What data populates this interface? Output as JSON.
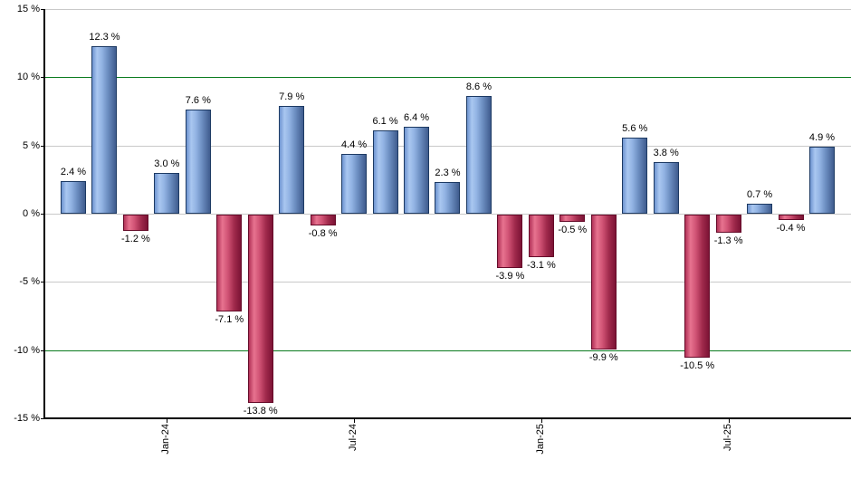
{
  "chart_data": {
    "type": "bar",
    "title": "",
    "xlabel": "",
    "ylabel": "",
    "ylim": [
      -15,
      15
    ],
    "grid": true,
    "legend_position": "none",
    "y_ticks": [
      {
        "value": 15,
        "label": "15 %"
      },
      {
        "value": 10,
        "label": "10 %"
      },
      {
        "value": 5,
        "label": "5 %"
      },
      {
        "value": 0,
        "label": "0 %"
      },
      {
        "value": -5,
        "label": "-5 %"
      },
      {
        "value": -10,
        "label": "-10 %"
      },
      {
        "value": -15,
        "label": "-15 %"
      }
    ],
    "threshold_lines": [
      10,
      -10
    ],
    "x_ticks": [
      {
        "index": 3,
        "label": "Jan-24"
      },
      {
        "index": 9,
        "label": "Jul-24"
      },
      {
        "index": 15,
        "label": "Jan-25"
      },
      {
        "index": 21,
        "label": "Jul-25"
      }
    ],
    "bars": [
      {
        "value": 2.4,
        "label": "2.4 %"
      },
      {
        "value": 12.3,
        "label": "12.3 %"
      },
      {
        "value": -1.2,
        "label": "-1.2 %"
      },
      {
        "value": 3.0,
        "label": "3.0 %"
      },
      {
        "value": 7.6,
        "label": "7.6 %"
      },
      {
        "value": -7.1,
        "label": "-7.1 %"
      },
      {
        "value": -13.8,
        "label": "-13.8 %"
      },
      {
        "value": 7.9,
        "label": "7.9 %"
      },
      {
        "value": -0.8,
        "label": "-0.8 %"
      },
      {
        "value": 4.4,
        "label": "4.4 %"
      },
      {
        "value": 6.1,
        "label": "6.1 %"
      },
      {
        "value": 6.4,
        "label": "6.4 %"
      },
      {
        "value": 2.3,
        "label": "2.3 %"
      },
      {
        "value": 8.6,
        "label": "8.6 %"
      },
      {
        "value": -3.9,
        "label": "-3.9 %"
      },
      {
        "value": -3.1,
        "label": "-3.1 %"
      },
      {
        "value": -0.5,
        "label": "-0.5 %"
      },
      {
        "value": -9.9,
        "label": "-9.9 %"
      },
      {
        "value": 5.6,
        "label": "5.6 %"
      },
      {
        "value": 3.8,
        "label": "3.8 %"
      },
      {
        "value": -10.5,
        "label": "-10.5 %"
      },
      {
        "value": -1.3,
        "label": "-1.3 %"
      },
      {
        "value": 0.7,
        "label": "0.7 %"
      },
      {
        "value": -0.4,
        "label": "-0.4 %"
      },
      {
        "value": 4.9,
        "label": "4.9 %"
      }
    ],
    "colors": {
      "positive_bar": "#88abe2",
      "positive_border": "#1d3a63",
      "negative_bar": "#cc4a6d",
      "negative_border": "#650b29",
      "threshold_line": "#0a7b1e",
      "gridline": "#c9c9c9",
      "axis": "#000000",
      "background": "#ffffff"
    }
  }
}
